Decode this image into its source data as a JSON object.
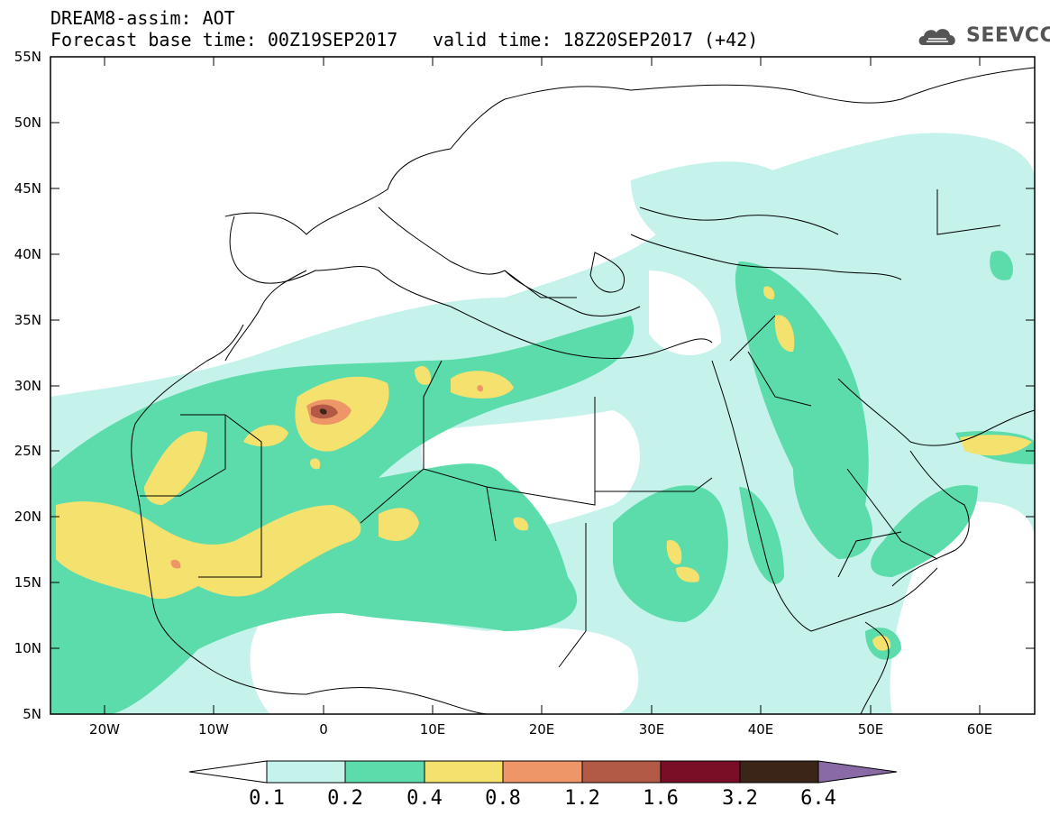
{
  "header": {
    "title_line1": "DREAM8-assim: AOT",
    "title_line2": "Forecast base time: 00Z19SEP2017",
    "valid_time": "valid time: 18Z20SEP2017 (+42)",
    "logo_text": "SEEVCCC",
    "logo_icon": "cloud-icon"
  },
  "map": {
    "lat_labels": [
      "55N",
      "50N",
      "45N",
      "40N",
      "35N",
      "30N",
      "25N",
      "20N",
      "15N",
      "10N",
      "5N"
    ],
    "lon_labels": [
      "20W",
      "10W",
      "0",
      "10E",
      "20E",
      "30E",
      "40E",
      "50E",
      "60E"
    ]
  },
  "colorbar": {
    "labels": [
      "0.1",
      "0.2",
      "0.4",
      "0.8",
      "1.2",
      "1.6",
      "3.2",
      "6.4"
    ],
    "colors": {
      "below": "#ffffff",
      "c1": "#c6f2ec",
      "c2": "#5bdcaa",
      "c3": "#f5e26e",
      "c4": "#ef9668",
      "c5": "#b35a46",
      "c6": "#7a0e26",
      "c7": "#3b2418",
      "above": "#8a6aa6"
    }
  }
}
